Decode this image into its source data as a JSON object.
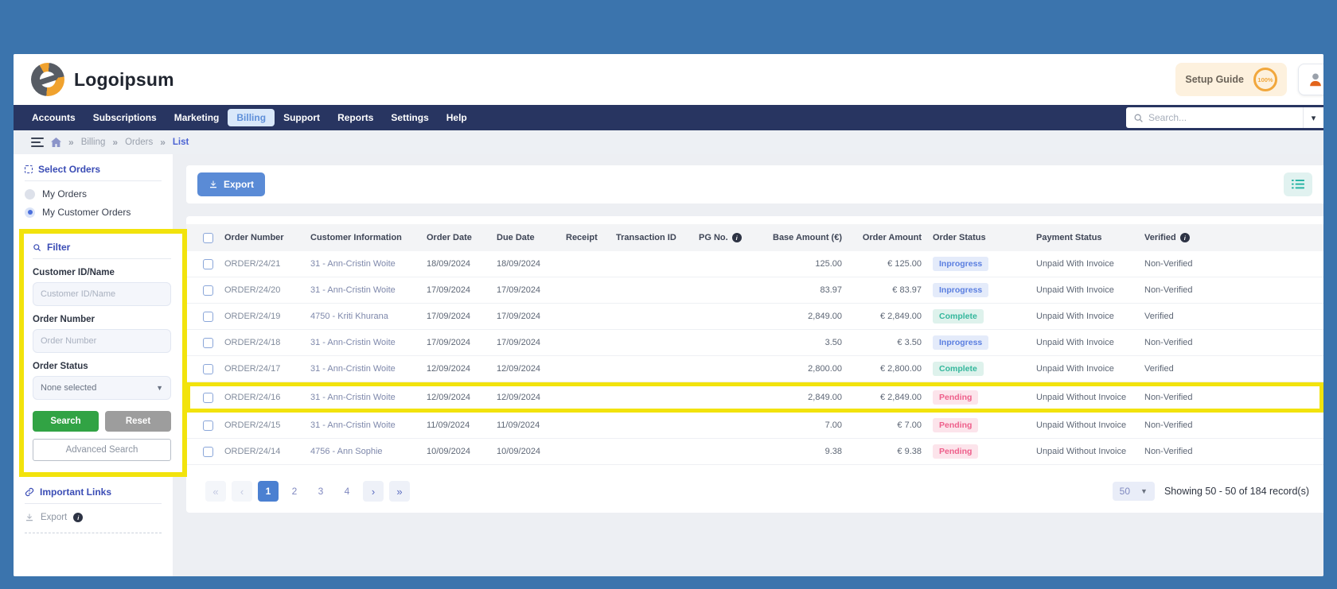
{
  "colors": {
    "frame_blue": "#3b74ad",
    "nav_navy": "#283561",
    "accent_blue": "#5a8bd6",
    "section_title_blue": "#3a4cb5",
    "highlight_yellow": "#f2e30c",
    "search_green": "#31a344",
    "reset_gray": "#9d9d9d",
    "status_inprogress": "#5b7fe0",
    "status_complete": "#33b79c",
    "status_pending": "#ee5f8b",
    "setup_orange": "#f1a73c"
  },
  "header": {
    "logo_text": "Logoipsum",
    "setup_guide_label": "Setup Guide",
    "setup_guide_progress": "100%"
  },
  "nav": {
    "items": [
      {
        "label": "Accounts",
        "active": false
      },
      {
        "label": "Subscriptions",
        "active": false
      },
      {
        "label": "Marketing",
        "active": false
      },
      {
        "label": "Billing",
        "active": true
      },
      {
        "label": "Support",
        "active": false
      },
      {
        "label": "Reports",
        "active": false
      },
      {
        "label": "Settings",
        "active": false
      },
      {
        "label": "Help",
        "active": false
      }
    ],
    "search_placeholder": "Search..."
  },
  "breadcrumb": {
    "crumbs": [
      "Billing",
      "Orders",
      "List"
    ]
  },
  "sidebar": {
    "select_orders_title": "Select Orders",
    "select_orders_options": [
      {
        "label": "My Orders",
        "selected": false
      },
      {
        "label": "My Customer Orders",
        "selected": true
      }
    ],
    "filter_title": "Filter",
    "filter_fields": [
      {
        "label": "Customer ID/Name",
        "type": "text",
        "placeholder": "Customer ID/Name",
        "value": ""
      },
      {
        "label": "Order Number",
        "type": "text",
        "placeholder": "Order Number",
        "value": ""
      },
      {
        "label": "Order Status",
        "type": "select",
        "value": "None selected"
      }
    ],
    "search_button": "Search",
    "reset_button": "Reset",
    "advanced_search_button": "Advanced Search",
    "important_links_title": "Important Links",
    "links": [
      {
        "label": "Export",
        "has_info": true
      }
    ]
  },
  "toolbar": {
    "export_button": "Export"
  },
  "table": {
    "columns": [
      {
        "label": "Order Number"
      },
      {
        "label": "Customer Information"
      },
      {
        "label": "Order Date"
      },
      {
        "label": "Due Date"
      },
      {
        "label": "Receipt"
      },
      {
        "label": "Transaction ID"
      },
      {
        "label": "PG No.",
        "info": true
      },
      {
        "label": "Base Amount (€)",
        "align": "right"
      },
      {
        "label": "Order Amount",
        "align": "right"
      },
      {
        "label": "Order Status"
      },
      {
        "label": "Payment Status"
      },
      {
        "label": "Verified",
        "info": true
      }
    ],
    "rows": [
      {
        "order_number": "ORDER/24/21",
        "customer": "31 - Ann-Cristin Woite",
        "order_date": "18/09/2024",
        "due_date": "18/09/2024",
        "receipt": "",
        "transaction_id": "",
        "pg_no": "",
        "base_amount": "125.00",
        "order_amount": "€ 125.00",
        "order_status": "Inprogress",
        "payment_status": "Unpaid With Invoice",
        "verified": "Non-Verified",
        "highlighted": false
      },
      {
        "order_number": "ORDER/24/20",
        "customer": "31 - Ann-Cristin Woite",
        "order_date": "17/09/2024",
        "due_date": "17/09/2024",
        "receipt": "",
        "transaction_id": "",
        "pg_no": "",
        "base_amount": "83.97",
        "order_amount": "€ 83.97",
        "order_status": "Inprogress",
        "payment_status": "Unpaid With Invoice",
        "verified": "Non-Verified",
        "highlighted": false
      },
      {
        "order_number": "ORDER/24/19",
        "customer": "4750 - Kriti Khurana",
        "order_date": "17/09/2024",
        "due_date": "17/09/2024",
        "receipt": "",
        "transaction_id": "",
        "pg_no": "",
        "base_amount": "2,849.00",
        "order_amount": "€ 2,849.00",
        "order_status": "Complete",
        "payment_status": "Unpaid With Invoice",
        "verified": "Verified",
        "highlighted": false
      },
      {
        "order_number": "ORDER/24/18",
        "customer": "31 - Ann-Cristin Woite",
        "order_date": "17/09/2024",
        "due_date": "17/09/2024",
        "receipt": "",
        "transaction_id": "",
        "pg_no": "",
        "base_amount": "3.50",
        "order_amount": "€ 3.50",
        "order_status": "Inprogress",
        "payment_status": "Unpaid With Invoice",
        "verified": "Non-Verified",
        "highlighted": false
      },
      {
        "order_number": "ORDER/24/17",
        "customer": "31 - Ann-Cristin Woite",
        "order_date": "12/09/2024",
        "due_date": "12/09/2024",
        "receipt": "",
        "transaction_id": "",
        "pg_no": "",
        "base_amount": "2,800.00",
        "order_amount": "€ 2,800.00",
        "order_status": "Complete",
        "payment_status": "Unpaid With Invoice",
        "verified": "Verified",
        "highlighted": false
      },
      {
        "order_number": "ORDER/24/16",
        "customer": "31 - Ann-Cristin Woite",
        "order_date": "12/09/2024",
        "due_date": "12/09/2024",
        "receipt": "",
        "transaction_id": "",
        "pg_no": "",
        "base_amount": "2,849.00",
        "order_amount": "€ 2,849.00",
        "order_status": "Pending",
        "payment_status": "Unpaid Without Invoice",
        "verified": "Non-Verified",
        "highlighted": true
      },
      {
        "order_number": "ORDER/24/15",
        "customer": "31 - Ann-Cristin Woite",
        "order_date": "11/09/2024",
        "due_date": "11/09/2024",
        "receipt": "",
        "transaction_id": "",
        "pg_no": "",
        "base_amount": "7.00",
        "order_amount": "€ 7.00",
        "order_status": "Pending",
        "payment_status": "Unpaid Without Invoice",
        "verified": "Non-Verified",
        "highlighted": false
      },
      {
        "order_number": "ORDER/24/14",
        "customer": "4756 - Ann Sophie",
        "order_date": "10/09/2024",
        "due_date": "10/09/2024",
        "receipt": "",
        "transaction_id": "",
        "pg_no": "",
        "base_amount": "9.38",
        "order_amount": "€ 9.38",
        "order_status": "Pending",
        "payment_status": "Unpaid Without Invoice",
        "verified": "Non-Verified",
        "highlighted": false
      }
    ]
  },
  "pagination": {
    "first": "«",
    "prev": "‹",
    "pages": [
      "1",
      "2",
      "3",
      "4"
    ],
    "active_page": "1",
    "next": "›",
    "last": "»",
    "page_size": "50",
    "showing_text": "Showing 50 - 50 of 184 record(s)"
  }
}
